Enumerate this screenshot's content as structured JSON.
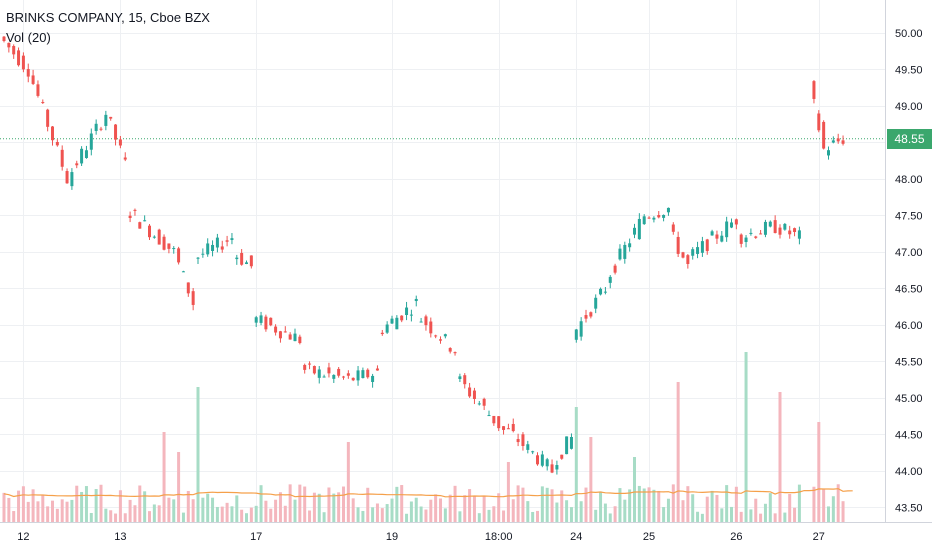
{
  "header": {
    "title": "BRINKS COMPANY, 15, Cboe BZX",
    "volume_label": "Vol (20)"
  },
  "current_price": {
    "label": "48.55",
    "value": 48.55,
    "color": "#3aa76d"
  },
  "colors": {
    "up": "#26a69a",
    "down": "#ef5350",
    "vol_up": "#a7dcc6",
    "vol_down": "#f4b6bd",
    "ma_line": "#f5a04a",
    "grid": "#eef0f3",
    "price_line": "#3aa76d"
  },
  "chart_data": {
    "type": "candlestick",
    "title": "BRINKS COMPANY, 15, Cboe BZX",
    "grid": true,
    "y_axis": {
      "position": "right",
      "ylim": [
        43.3,
        50.45
      ],
      "ticks": [
        "50.00",
        "49.50",
        "49.00",
        "48.50",
        "48.00",
        "47.50",
        "47.00",
        "46.50",
        "46.00",
        "45.50",
        "45.00",
        "44.50",
        "44.00",
        "43.50"
      ]
    },
    "x_axis": {
      "ticks": [
        {
          "label": "12",
          "index": 4
        },
        {
          "label": "13",
          "index": 24
        },
        {
          "label": "17",
          "index": 52
        },
        {
          "label": "19",
          "index": 80
        },
        {
          "label": "18:00",
          "index": 102
        },
        {
          "label": "24",
          "index": 118
        },
        {
          "label": "25",
          "index": 133
        },
        {
          "label": "26",
          "index": 151
        },
        {
          "label": "27",
          "index": 168
        }
      ]
    },
    "segments": [
      {
        "start": 0,
        "end": 6,
        "open": 49.95,
        "close": 49.5
      },
      {
        "start": 6,
        "end": 14,
        "open": 49.5,
        "close": 48.0
      },
      {
        "start": 14,
        "end": 22,
        "open": 48.0,
        "close": 48.9
      },
      {
        "start": 22,
        "end": 26,
        "open": 48.9,
        "close": 48.2
      },
      {
        "start": 26,
        "end": 36,
        "open": 47.6,
        "close": 47.0
      },
      {
        "start": 36,
        "end": 40,
        "open": 47.0,
        "close": 46.3
      },
      {
        "start": 40,
        "end": 48,
        "open": 46.9,
        "close": 47.2
      },
      {
        "start": 48,
        "end": 52,
        "open": 47.0,
        "close": 46.8
      },
      {
        "start": 52,
        "end": 62,
        "open": 46.1,
        "close": 45.8
      },
      {
        "start": 62,
        "end": 72,
        "open": 45.4,
        "close": 45.25
      },
      {
        "start": 72,
        "end": 78,
        "open": 45.25,
        "close": 45.35
      },
      {
        "start": 78,
        "end": 86,
        "open": 45.9,
        "close": 46.3
      },
      {
        "start": 86,
        "end": 94,
        "open": 46.15,
        "close": 45.65
      },
      {
        "start": 94,
        "end": 104,
        "open": 45.3,
        "close": 44.55
      },
      {
        "start": 104,
        "end": 114,
        "open": 44.6,
        "close": 44.0
      },
      {
        "start": 114,
        "end": 118,
        "open": 44.1,
        "close": 44.45
      },
      {
        "start": 118,
        "end": 125,
        "open": 45.85,
        "close": 46.5
      },
      {
        "start": 125,
        "end": 133,
        "open": 46.6,
        "close": 47.5
      },
      {
        "start": 133,
        "end": 138,
        "open": 47.5,
        "close": 47.6
      },
      {
        "start": 138,
        "end": 142,
        "open": 47.3,
        "close": 46.8
      },
      {
        "start": 142,
        "end": 152,
        "open": 46.9,
        "close": 47.45
      },
      {
        "start": 152,
        "end": 160,
        "open": 47.2,
        "close": 47.35
      },
      {
        "start": 160,
        "end": 165,
        "open": 47.35,
        "close": 47.2
      },
      {
        "start": 167,
        "end": 170,
        "open": 49.3,
        "close": 48.4
      },
      {
        "start": 170,
        "end": 174,
        "open": 48.4,
        "close": 48.55
      }
    ],
    "volume_spikes": [
      {
        "index": 33,
        "value": 90
      },
      {
        "index": 40,
        "value": 135
      },
      {
        "index": 71,
        "value": 80
      },
      {
        "index": 104,
        "value": 60
      },
      {
        "index": 118,
        "value": 115
      },
      {
        "index": 139,
        "value": 140
      },
      {
        "index": 153,
        "value": 170
      },
      {
        "index": 160,
        "value": 130
      },
      {
        "index": 165,
        "value": 110
      },
      {
        "index": 168,
        "value": 100
      },
      {
        "index": 36,
        "value": 70
      },
      {
        "index": 121,
        "value": 85
      },
      {
        "index": 130,
        "value": 65
      }
    ],
    "volume_ma_label": "Vol (20)"
  }
}
